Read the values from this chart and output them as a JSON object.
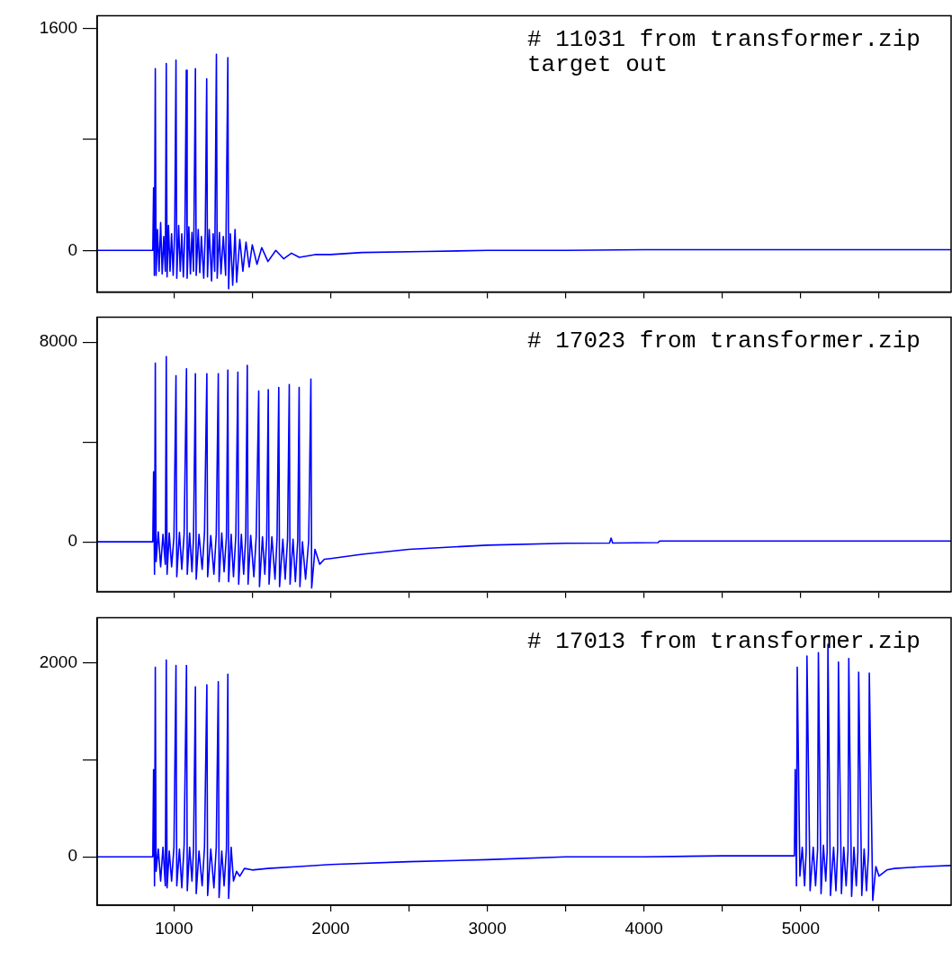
{
  "chart_data": [
    {
      "type": "line",
      "color": "#0000ff",
      "xlim": [
        510,
        5960
      ],
      "ylim": [
        -300,
        1690
      ],
      "tick_labels": "y",
      "xticks": [
        1000,
        {
          "value": 1500,
          "label": null
        },
        2000,
        {
          "value": 2500,
          "label": null
        },
        3000,
        {
          "value": 3500,
          "label": null
        },
        4000,
        {
          "value": 4500,
          "label": null
        },
        5000,
        {
          "value": 5500,
          "label": null
        }
      ],
      "yticks": [
        0,
        {
          "value": 800,
          "label": null
        },
        1600
      ],
      "annotations": [
        "# 11031 from transformer.zip",
        "target out"
      ],
      "x": [
        510,
        865,
        870,
        875,
        881,
        886,
        895,
        905,
        915,
        925,
        935,
        945,
        951,
        956,
        965,
        975,
        985,
        995,
        1005,
        1013,
        1018,
        1030,
        1040,
        1050,
        1060,
        1070,
        1079,
        1084,
        1095,
        1105,
        1115,
        1125,
        1137,
        1142,
        1155,
        1165,
        1175,
        1190,
        1200,
        1209,
        1214,
        1225,
        1240,
        1250,
        1260,
        1271,
        1276,
        1290,
        1300,
        1315,
        1330,
        1344,
        1349,
        1360,
        1375,
        1390,
        1400,
        1420,
        1440,
        1460,
        1480,
        1500,
        1530,
        1560,
        1600,
        1650,
        1700,
        1750,
        1800,
        1900,
        2000,
        2200,
        2600,
        3000,
        3500,
        4000,
        5000,
        5960
      ],
      "values": [
        0,
        0,
        450,
        -180,
        1309,
        -180,
        150,
        -150,
        200,
        -170,
        100,
        -150,
        1345,
        -190,
        180,
        -150,
        120,
        -180,
        150,
        1370,
        -200,
        180,
        -150,
        120,
        -190,
        150,
        1297,
        -200,
        170,
        -170,
        130,
        -150,
        1309,
        -180,
        150,
        -160,
        100,
        -200,
        130,
        1236,
        -190,
        150,
        -220,
        120,
        -150,
        1412,
        -200,
        130,
        -170,
        100,
        -180,
        1388,
        -277,
        120,
        -250,
        150,
        -230,
        80,
        -150,
        60,
        -120,
        40,
        -100,
        20,
        -80,
        0,
        -60,
        -20,
        -50,
        -30,
        -30,
        -15,
        -8,
        0,
        0,
        5,
        5,
        5
      ]
    },
    {
      "type": "line",
      "color": "#0000ff",
      "xlim": [
        510,
        5960
      ],
      "ylim": [
        -2000,
        9000
      ],
      "tick_labels": "y",
      "xticks": [
        1000,
        {
          "value": 1500,
          "label": null
        },
        2000,
        {
          "value": 2500,
          "label": null
        },
        3000,
        {
          "value": 3500,
          "label": null
        },
        4000,
        {
          "value": 4500,
          "label": null
        },
        5000,
        {
          "value": 5500,
          "label": null
        }
      ],
      "yticks": [
        0,
        {
          "value": 4000,
          "label": null
        },
        8000
      ],
      "annotations": [
        "# 17023 from transformer.zip"
      ],
      "x": [
        510,
        865,
        870,
        876,
        881,
        886,
        900,
        915,
        930,
        945,
        951,
        956,
        970,
        985,
        1000,
        1013,
        1018,
        1035,
        1050,
        1065,
        1080,
        1085,
        1100,
        1115,
        1125,
        1137,
        1142,
        1160,
        1180,
        1195,
        1210,
        1215,
        1235,
        1255,
        1270,
        1283,
        1288,
        1305,
        1320,
        1335,
        1344,
        1349,
        1365,
        1380,
        1395,
        1408,
        1413,
        1430,
        1445,
        1458,
        1468,
        1473,
        1490,
        1510,
        1525,
        1541,
        1546,
        1565,
        1580,
        1592,
        1602,
        1607,
        1625,
        1645,
        1658,
        1669,
        1674,
        1695,
        1710,
        1725,
        1736,
        1741,
        1760,
        1775,
        1790,
        1799,
        1804,
        1820,
        1840,
        1860,
        1874,
        1879,
        1900,
        1930,
        1960,
        2000,
        2200,
        2500,
        3000,
        3500,
        3780,
        3790,
        3800,
        4090,
        4100,
        5960
      ],
      "values": [
        0,
        0,
        2800,
        -1300,
        7160,
        -800,
        400,
        -1000,
        300,
        -900,
        7418,
        -1300,
        350,
        -1000,
        200,
        6655,
        -1400,
        380,
        -1100,
        300,
        6934,
        -1300,
        350,
        -1200,
        200,
        6733,
        -1500,
        300,
        -1100,
        350,
        6733,
        -1400,
        250,
        -1300,
        300,
        6733,
        -1600,
        350,
        -1200,
        200,
        6880,
        -1600,
        300,
        -1400,
        250,
        6800,
        -1700,
        300,
        -1300,
        200,
        7069,
        -1700,
        250,
        -1400,
        200,
        6040,
        -1800,
        200,
        -1300,
        150,
        6094,
        -1700,
        200,
        -1500,
        150,
        6185,
        -1800,
        100,
        -1500,
        100,
        6296,
        -1700,
        100,
        -1600,
        50,
        6185,
        -1800,
        0,
        -1500,
        50,
        6521,
        -1850,
        -300,
        -900,
        -700,
        -670,
        -500,
        -300,
        -134,
        -60,
        -50,
        150,
        -50,
        -30,
        30,
        30
      ]
    },
    {
      "type": "line",
      "color": "#0000ff",
      "xlim": [
        510,
        5960
      ],
      "ylim": [
        -500,
        2470
      ],
      "xticks": [
        1000,
        {
          "value": 1500,
          "label": null
        },
        2000,
        {
          "value": 2500,
          "label": null
        },
        3000,
        {
          "value": 3500,
          "label": null
        },
        4000,
        {
          "value": 4500,
          "label": null
        },
        5000,
        {
          "value": 5500,
          "label": null
        }
      ],
      "yticks": [
        0,
        {
          "value": 1000,
          "label": null
        },
        2000
      ],
      "annotations": [
        "# 17013 from transformer.zip"
      ],
      "x": [
        510,
        865,
        870,
        876,
        881,
        886,
        900,
        915,
        930,
        945,
        951,
        956,
        970,
        985,
        1000,
        1013,
        1018,
        1035,
        1050,
        1065,
        1080,
        1085,
        1100,
        1115,
        1125,
        1137,
        1142,
        1160,
        1180,
        1195,
        1210,
        1215,
        1235,
        1255,
        1270,
        1283,
        1288,
        1305,
        1320,
        1335,
        1344,
        1349,
        1365,
        1380,
        1400,
        1420,
        1450,
        1500,
        1600,
        1800,
        2000,
        2500,
        3000,
        3500,
        4000,
        4500,
        4960,
        4965,
        4973,
        4978,
        4995,
        5010,
        5025,
        5035,
        5040,
        5060,
        5080,
        5095,
        5108,
        5113,
        5130,
        5145,
        5160,
        5169,
        5174,
        5190,
        5210,
        5225,
        5236,
        5241,
        5260,
        5275,
        5290,
        5302,
        5307,
        5325,
        5340,
        5355,
        5365,
        5370,
        5390,
        5405,
        5420,
        5433,
        5438,
        5460,
        5480,
        5500,
        5550,
        5600,
        5700,
        5800,
        5960
      ],
      "values": [
        0,
        0,
        900,
        -300,
        1958,
        -150,
        80,
        -250,
        100,
        -300,
        2033,
        -320,
        60,
        -250,
        100,
        1976,
        -300,
        80,
        -320,
        120,
        1976,
        -350,
        100,
        -250,
        80,
        1755,
        -380,
        60,
        -300,
        100,
        1776,
        -400,
        80,
        -320,
        100,
        1809,
        -420,
        60,
        -300,
        80,
        1885,
        -430,
        100,
        -250,
        -150,
        -200,
        -120,
        -136,
        -120,
        -100,
        -80,
        -50,
        -30,
        0,
        0,
        10,
        10,
        900,
        -300,
        1958,
        -200,
        100,
        -300,
        50,
        2073,
        -350,
        100,
        -300,
        80,
        2109,
        -380,
        120,
        -250,
        50,
        2194,
        -400,
        100,
        -350,
        80,
        2012,
        -380,
        100,
        -300,
        60,
        2048,
        -410,
        100,
        -300,
        50,
        1906,
        -400,
        80,
        -350,
        50,
        1897,
        -450,
        -100,
        -200,
        -136,
        -120,
        -110,
        -100,
        -90
      ]
    }
  ]
}
